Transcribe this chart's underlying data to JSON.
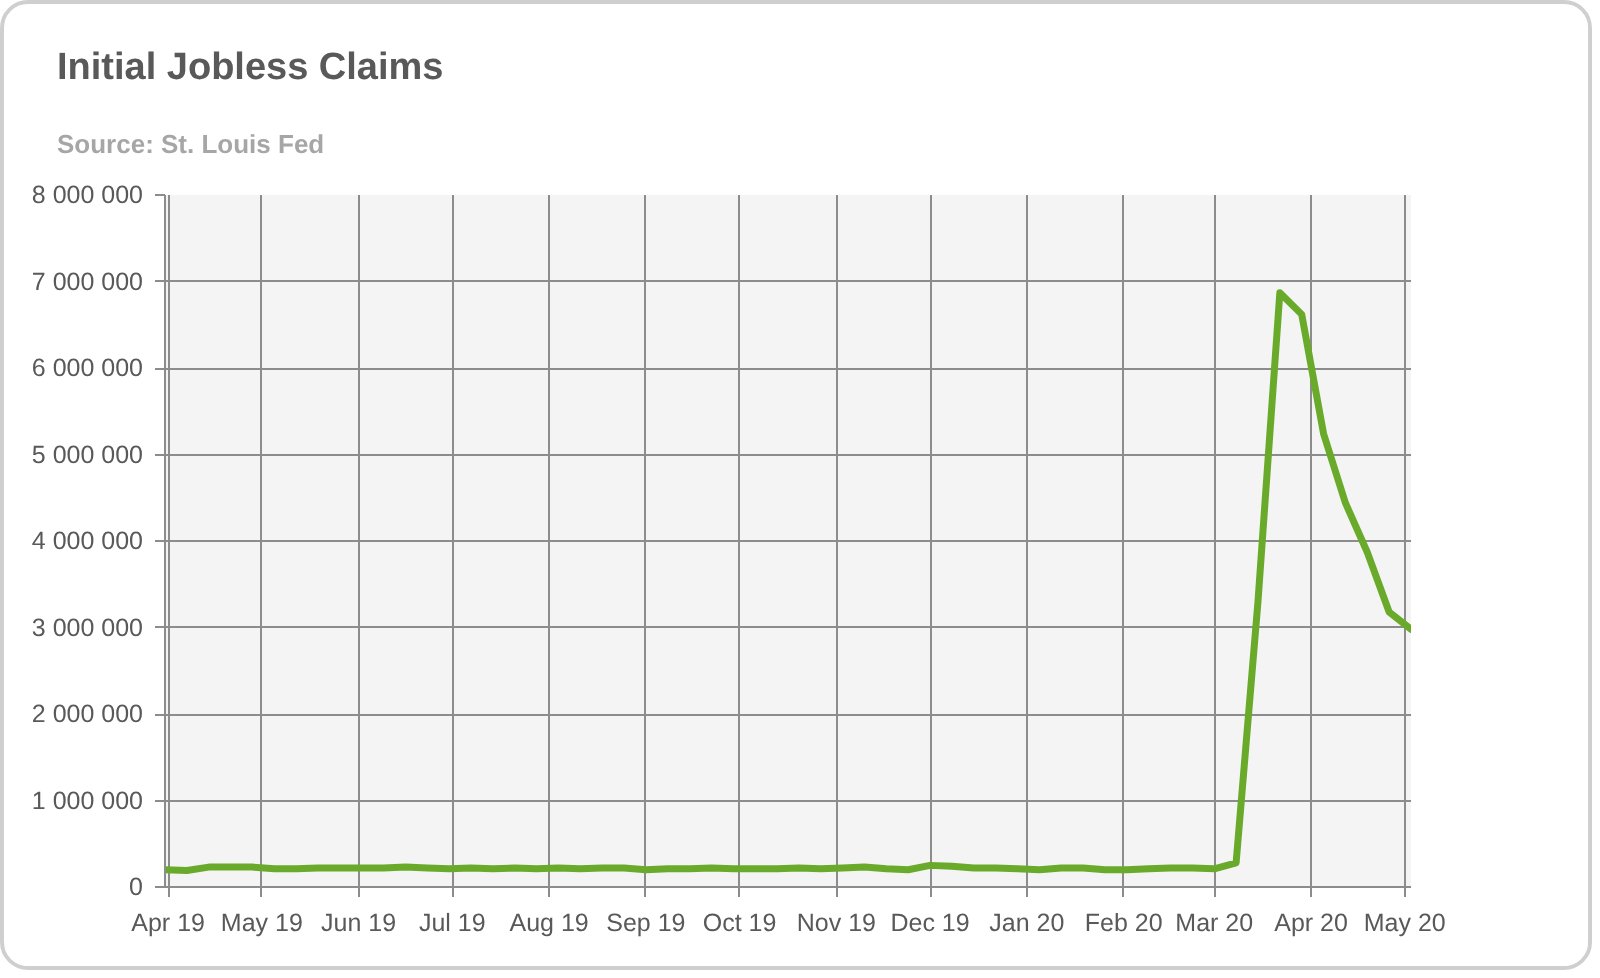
{
  "chart_data": {
    "type": "line",
    "title": "Initial Jobless Claims",
    "annotations": [
      "Source: St. Louis Fed"
    ],
    "x": [
      "2019-03-31",
      "2019-04-07",
      "2019-04-14",
      "2019-04-21",
      "2019-04-28",
      "2019-05-05",
      "2019-05-12",
      "2019-05-19",
      "2019-05-26",
      "2019-06-02",
      "2019-06-09",
      "2019-06-16",
      "2019-06-23",
      "2019-06-30",
      "2019-07-07",
      "2019-07-14",
      "2019-07-21",
      "2019-07-28",
      "2019-08-04",
      "2019-08-11",
      "2019-08-18",
      "2019-08-25",
      "2019-09-01",
      "2019-09-08",
      "2019-09-15",
      "2019-09-22",
      "2019-09-29",
      "2019-10-06",
      "2019-10-13",
      "2019-10-20",
      "2019-10-27",
      "2019-11-03",
      "2019-11-10",
      "2019-11-17",
      "2019-11-24",
      "2019-12-01",
      "2019-12-08",
      "2019-12-15",
      "2019-12-22",
      "2019-12-29",
      "2020-01-05",
      "2020-01-12",
      "2020-01-19",
      "2020-01-26",
      "2020-02-02",
      "2020-02-09",
      "2020-02-16",
      "2020-02-23",
      "2020-03-01",
      "2020-03-08",
      "2020-03-15",
      "2020-03-22",
      "2020-03-29",
      "2020-04-05",
      "2020-04-12",
      "2020-04-19",
      "2020-04-26",
      "2020-05-03"
    ],
    "values": [
      200000,
      190000,
      230000,
      230000,
      230000,
      210000,
      210000,
      220000,
      220000,
      220000,
      220000,
      230000,
      220000,
      210000,
      220000,
      210000,
      220000,
      210000,
      220000,
      210000,
      220000,
      220000,
      200000,
      210000,
      210000,
      220000,
      210000,
      210000,
      210000,
      220000,
      210000,
      220000,
      230000,
      210000,
      200000,
      250000,
      240000,
      220000,
      220000,
      210000,
      200000,
      220000,
      220000,
      200000,
      200000,
      210000,
      220000,
      220000,
      210000,
      280000,
      3300000,
      6870000,
      6620000,
      5240000,
      4440000,
      3870000,
      3180000,
      2980000
    ],
    "color": "#6aaa2a",
    "line_style": "solid",
    "xlim": [
      "2019-03-31",
      "2020-05-03"
    ],
    "ylim": [
      0,
      8000000
    ],
    "xticks": [
      {
        "value": "2019-04-01",
        "label": "Apr 19"
      },
      {
        "value": "2019-05-01",
        "label": "May 19"
      },
      {
        "value": "2019-06-01",
        "label": "Jun 19"
      },
      {
        "value": "2019-07-01",
        "label": "Jul 19"
      },
      {
        "value": "2019-08-01",
        "label": "Aug 19"
      },
      {
        "value": "2019-09-01",
        "label": "Sep 19"
      },
      {
        "value": "2019-10-01",
        "label": "Oct 19"
      },
      {
        "value": "2019-11-01",
        "label": "Nov 19"
      },
      {
        "value": "2019-12-01",
        "label": "Dec 19"
      },
      {
        "value": "2020-01-01",
        "label": "Jan 20"
      },
      {
        "value": "2020-02-01",
        "label": "Feb 20"
      },
      {
        "value": "2020-03-01",
        "label": "Mar 20"
      },
      {
        "value": "2020-04-01",
        "label": "Apr 20"
      },
      {
        "value": "2020-05-01",
        "label": "May 20"
      }
    ],
    "yticks": [
      0,
      {
        "value": 1000000,
        "label": "1 000 000"
      },
      {
        "value": 2000000,
        "label": "2 000 000"
      },
      {
        "value": 3000000,
        "label": "3 000 000"
      },
      {
        "value": 4000000,
        "label": "4 000 000"
      },
      {
        "value": 5000000,
        "label": "5 000 000"
      },
      {
        "value": 6000000,
        "label": "6 000 000"
      },
      {
        "value": 7000000,
        "label": "7 000 000"
      },
      {
        "value": 8000000,
        "label": "8 000 000"
      }
    ],
    "grid": true
  }
}
